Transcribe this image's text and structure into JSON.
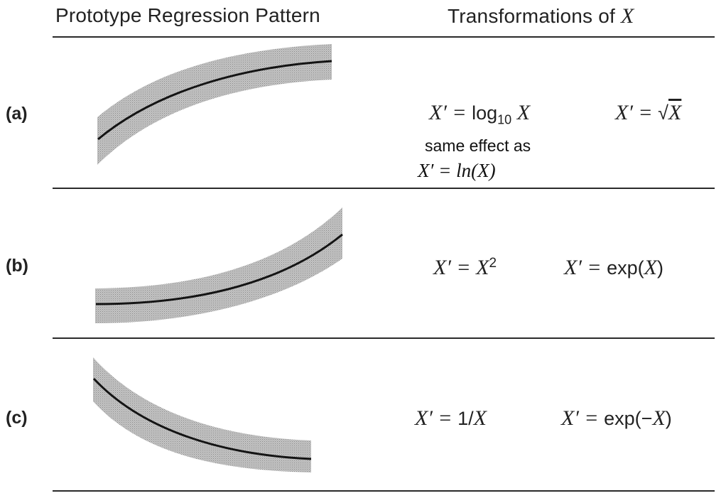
{
  "header": {
    "left_title": "Prototype Regression Pattern",
    "right_title_prefix": "Transformations of",
    "right_title_var": "X"
  },
  "rows": [
    {
      "label": "(a)",
      "pattern": "concave-increasing",
      "formula1_lhs": "X′ = ",
      "formula1_func": "log",
      "formula1_sub": "10",
      "formula1_arg": "X",
      "formula2_lhs": "X′ = ",
      "formula2_rad": "√",
      "formula2_arg": "X",
      "note_line1": "same effect as",
      "note_line2": "X′ = ln(X)"
    },
    {
      "label": "(b)",
      "pattern": "convex-increasing",
      "formula1_lhs": "X′ = ",
      "formula1_var": "X",
      "formula1_sup": "2",
      "formula2_lhs": "X′ = ",
      "formula2_func": "exp(",
      "formula2_arg": "X",
      "formula2_close": ")"
    },
    {
      "label": "(c)",
      "pattern": "convex-decreasing",
      "formula1_lhs": "X′ = ",
      "formula1_rhs": "1/",
      "formula1_arg": "X",
      "formula2_lhs": "X′ = ",
      "formula2_func": "exp(−",
      "formula2_arg": "X",
      "formula2_close": ")"
    }
  ],
  "colors": {
    "band": "#b8b8b8",
    "curve": "#141414",
    "rule": "#2a2a2a"
  }
}
